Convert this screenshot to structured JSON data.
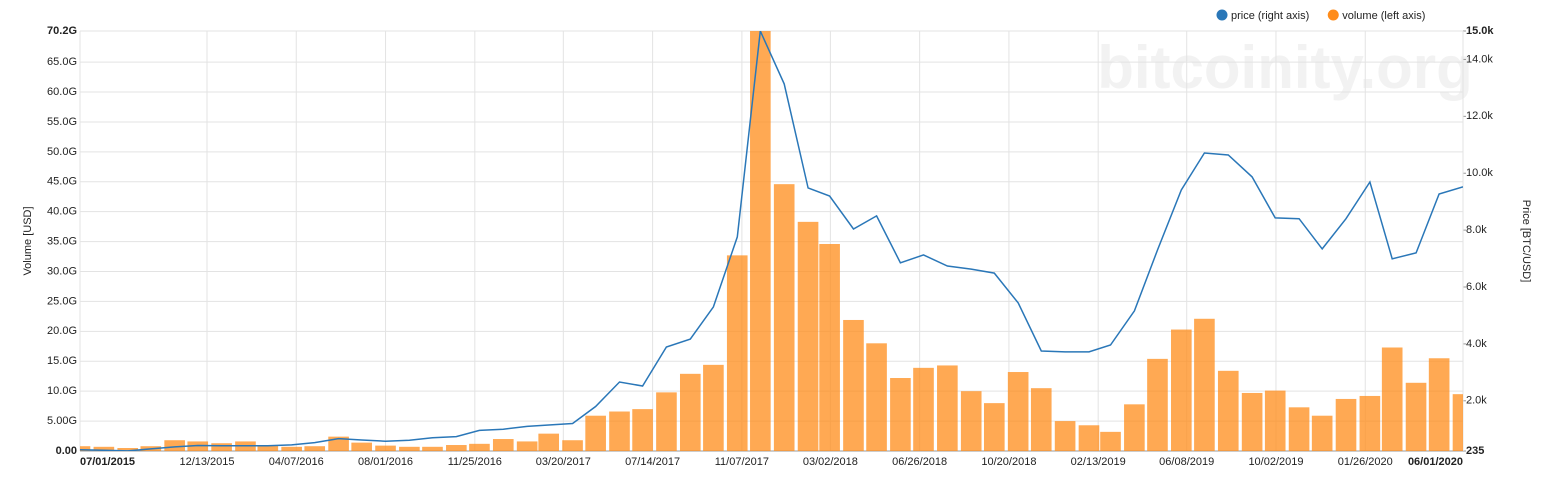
{
  "chart_data": {
    "type": "bar",
    "x": [
      "2015-07-01",
      "2015-08-01",
      "2015-09-01",
      "2015-10-01",
      "2015-11-01",
      "2015-12-01",
      "2016-01-01",
      "2016-02-01",
      "2016-03-01",
      "2016-04-01",
      "2016-05-01",
      "2016-06-01",
      "2016-07-01",
      "2016-08-01",
      "2016-09-01",
      "2016-10-01",
      "2016-11-01",
      "2016-12-01",
      "2017-01-01",
      "2017-02-01",
      "2017-03-01",
      "2017-04-01",
      "2017-05-01",
      "2017-06-01",
      "2017-07-01",
      "2017-08-01",
      "2017-09-01",
      "2017-10-01",
      "2017-11-01",
      "2017-12-01",
      "2018-01-01",
      "2018-02-01",
      "2018-03-01",
      "2018-04-01",
      "2018-05-01",
      "2018-06-01",
      "2018-07-01",
      "2018-08-01",
      "2018-09-01",
      "2018-10-01",
      "2018-11-01",
      "2018-12-01",
      "2019-01-01",
      "2019-02-01",
      "2019-03-01",
      "2019-04-01",
      "2019-05-01",
      "2019-06-01",
      "2019-07-01",
      "2019-08-01",
      "2019-09-01",
      "2019-10-01",
      "2019-11-01",
      "2019-12-01",
      "2020-01-01",
      "2020-02-01",
      "2020-03-01",
      "2020-04-01",
      "2020-05-01",
      "2020-06-01"
    ],
    "xlim": [
      "2015-07-01",
      "2020-06-01"
    ],
    "xticks": [
      {
        "value": "2015-07-01",
        "label": "07/01/2015"
      },
      {
        "value": "2015-12-13",
        "label": "12/13/2015"
      },
      {
        "value": "2016-04-07",
        "label": "04/07/2016"
      },
      {
        "value": "2016-08-01",
        "label": "08/01/2016"
      },
      {
        "value": "2016-11-25",
        "label": "11/25/2016"
      },
      {
        "value": "2017-03-20",
        "label": "03/20/2017"
      },
      {
        "value": "2017-07-14",
        "label": "07/14/2017"
      },
      {
        "value": "2017-11-07",
        "label": "11/07/2017"
      },
      {
        "value": "2018-03-02",
        "label": "03/02/2018"
      },
      {
        "value": "2018-06-26",
        "label": "06/26/2018"
      },
      {
        "value": "2018-10-20",
        "label": "10/20/2018"
      },
      {
        "value": "2019-02-13",
        "label": "02/13/2019"
      },
      {
        "value": "2019-06-08",
        "label": "06/08/2019"
      },
      {
        "value": "2019-10-02",
        "label": "10/02/2019"
      },
      {
        "value": "2020-01-26",
        "label": "01/26/2020"
      },
      {
        "value": "2020-06-01",
        "label": "06/01/2020"
      }
    ],
    "ylim": [
      0,
      70.2
    ],
    "yticks": [
      {
        "value": 0,
        "label": "0.00"
      },
      {
        "value": 5,
        "label": "5.00G"
      },
      {
        "value": 10,
        "label": "10.0G"
      },
      {
        "value": 15,
        "label": "15.0G"
      },
      {
        "value": 20,
        "label": "20.0G"
      },
      {
        "value": 25,
        "label": "25.0G"
      },
      {
        "value": 30,
        "label": "30.0G"
      },
      {
        "value": 35,
        "label": "35.0G"
      },
      {
        "value": 40,
        "label": "40.0G"
      },
      {
        "value": 45,
        "label": "45.0G"
      },
      {
        "value": 50,
        "label": "50.0G"
      },
      {
        "value": 55,
        "label": "55.0G"
      },
      {
        "value": 60,
        "label": "60.0G"
      },
      {
        "value": 65,
        "label": "65.0G"
      },
      {
        "value": 70.2,
        "label": "70.2G"
      }
    ],
    "y2lim": [
      235,
      15000
    ],
    "y2ticks": [
      235,
      {
        "value": 2000,
        "label": "2.0k"
      },
      {
        "value": 4000,
        "label": "4.0k"
      },
      {
        "value": 6000,
        "label": "6.0k"
      },
      {
        "value": 8000,
        "label": "8.0k"
      },
      {
        "value": 10000,
        "label": "10.0k"
      },
      {
        "value": 12000,
        "label": "12.0k"
      },
      {
        "value": 14000,
        "label": "14.0k"
      },
      {
        "value": 15000,
        "label": "15.0k"
      }
    ],
    "y_label": "Volume [USD]",
    "y2_label": "Price [BTC/USD]",
    "watermark": "bitcoinity.org",
    "grid": true,
    "series": [
      {
        "name": "price (right axis)",
        "type": "line",
        "axis": "y2",
        "color": "#2a77b8",
        "values": [
          280,
          260,
          240,
          310,
          380,
          430,
          420,
          420,
          420,
          450,
          530,
          670,
          620,
          580,
          610,
          700,
          740,
          960,
          1000,
          1100,
          1150,
          1200,
          1800,
          2660,
          2520,
          3890,
          4170,
          5300,
          7760,
          15000,
          13140,
          9480,
          9200,
          8040,
          8500,
          6850,
          7130,
          6740,
          6630,
          6490,
          5440,
          3750,
          3720,
          3720,
          3960,
          5160,
          7300,
          9410,
          10710,
          10640,
          9870,
          8430,
          8400,
          7340,
          8400,
          9690,
          6990,
          7200,
          9270,
          9520
        ]
      },
      {
        "name": "volume (left axis)",
        "type": "bar",
        "color": "#ff8c1a",
        "values": [
          0.8,
          0.7,
          0.5,
          0.8,
          1.8,
          1.6,
          1.3,
          1.6,
          0.9,
          0.7,
          0.8,
          2.4,
          1.4,
          0.9,
          0.7,
          0.7,
          1.0,
          1.2,
          2.0,
          1.6,
          2.9,
          1.8,
          5.9,
          6.6,
          7.0,
          9.8,
          12.9,
          14.4,
          32.7,
          70.2,
          44.6,
          38.3,
          34.6,
          21.9,
          18.0,
          12.2,
          13.9,
          14.3,
          10.0,
          8.0,
          13.2,
          10.5,
          5.0,
          4.3,
          3.2,
          7.8,
          15.4,
          20.3,
          22.1,
          13.4,
          9.7,
          10.1,
          7.3,
          5.9,
          8.7,
          9.2,
          17.3,
          11.4,
          15.5,
          9.5
        ]
      }
    ]
  }
}
